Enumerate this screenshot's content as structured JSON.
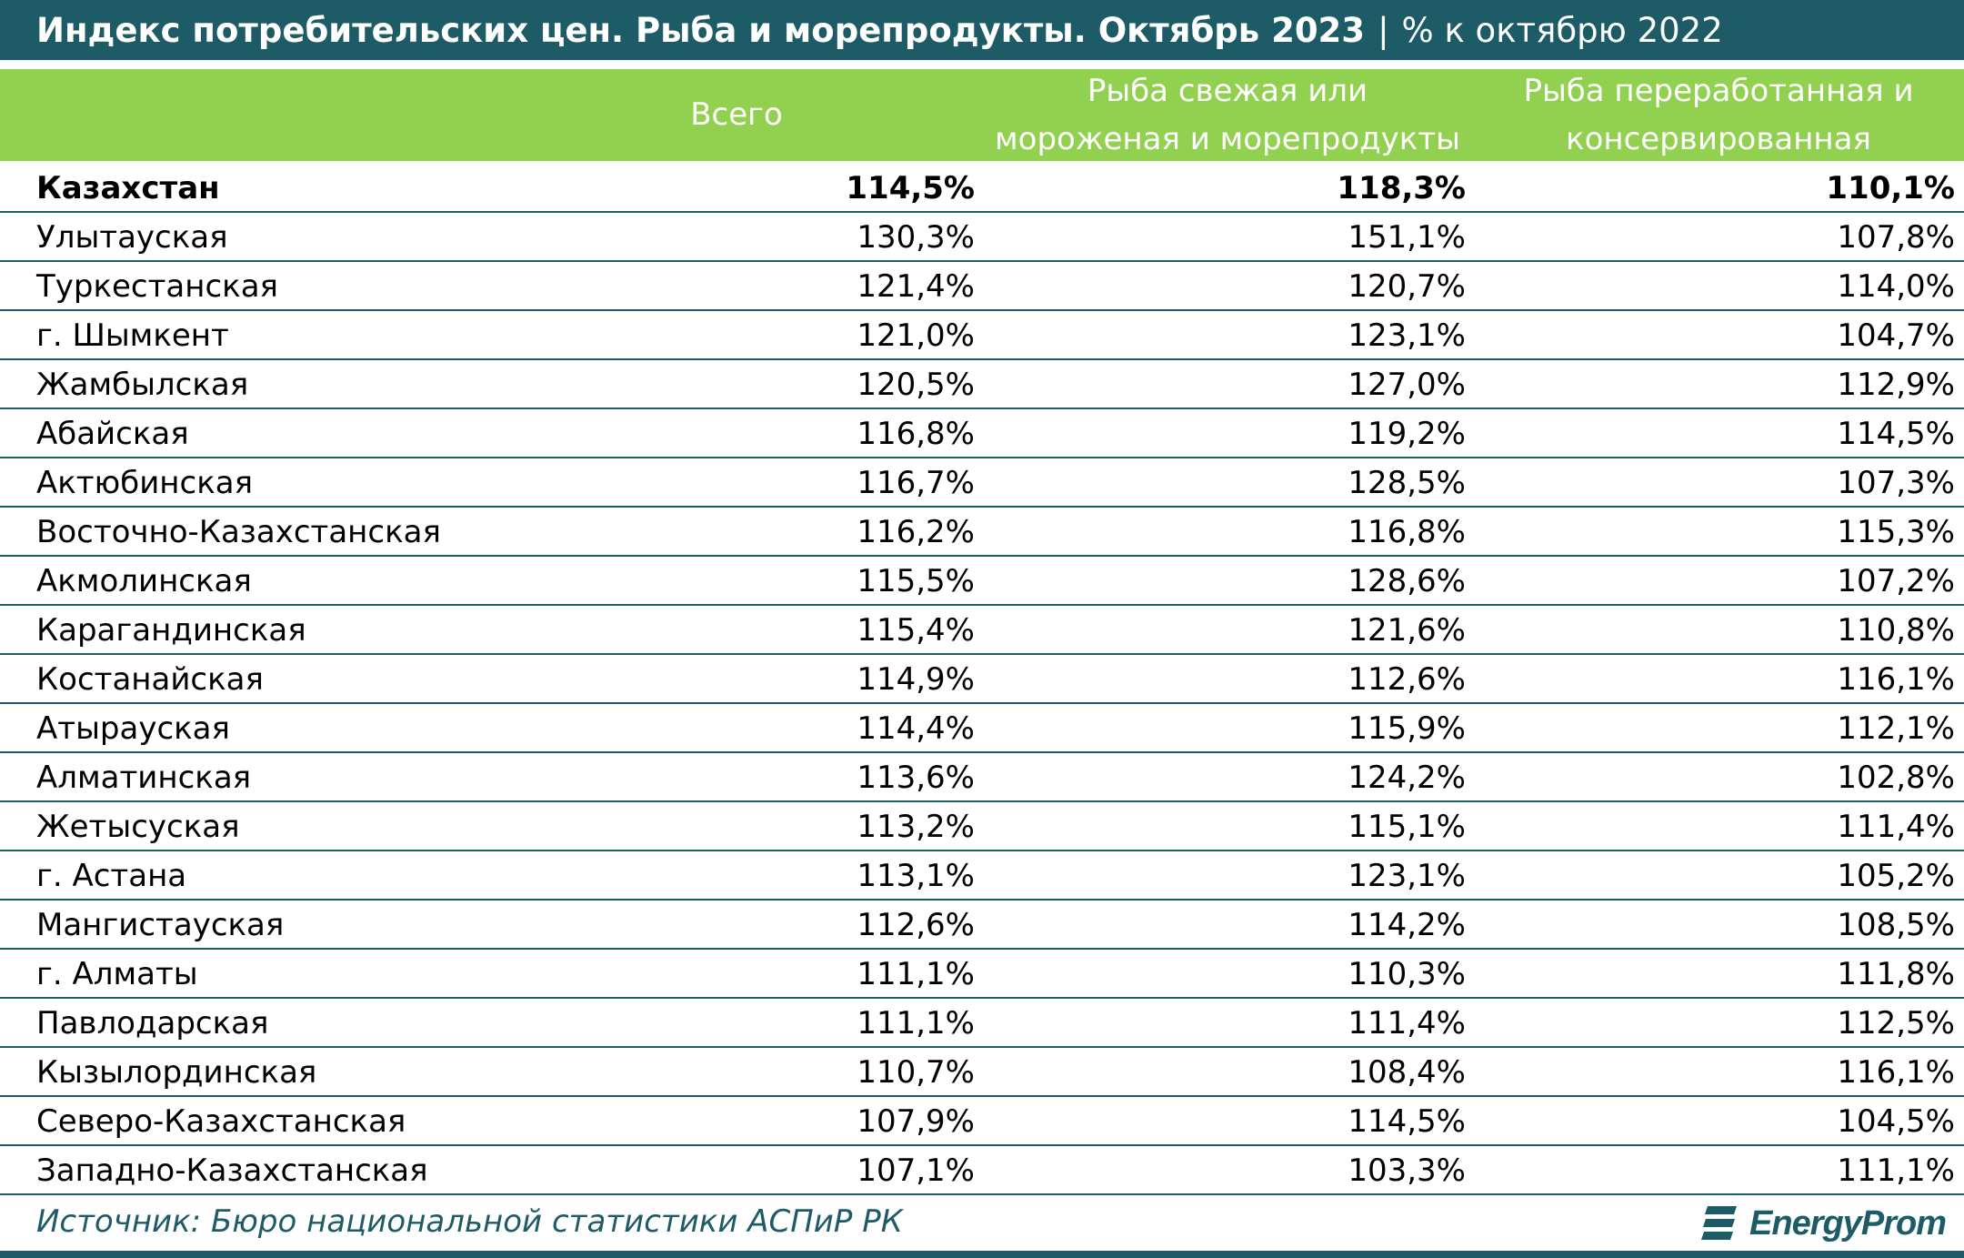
{
  "title": {
    "main": "Индекс потребительских цен. Рыба и морепродукты. Октябрь 2023",
    "separator": "|",
    "subtitle": "% к октябрю 2022"
  },
  "colors": {
    "title_bar": "#1d5c66",
    "header_bg": "#92d050",
    "header_text": "#ffffff",
    "row_border": "#1d5c66",
    "source_text": "#1d5c66"
  },
  "chart_data": {
    "type": "table",
    "title": "Индекс потребительских цен. Рыба и морепродукты. Октябрь 2023",
    "subtitle": "% к октябрю 2022",
    "columns": [
      "Всего",
      "Рыба свежая или мороженая и морепродукты",
      "Рыба переработанная и консервированная"
    ],
    "column_lines": [
      [
        "Всего"
      ],
      [
        "Рыба свежая или",
        "мороженая и морепродукты"
      ],
      [
        "Рыба переработанная и",
        "консервированная"
      ]
    ],
    "rows": [
      {
        "region": "Казахстан",
        "values": [
          "114,5%",
          "118,3%",
          "110,1%"
        ],
        "bold": true
      },
      {
        "region": "Улытауская",
        "values": [
          "130,3%",
          "151,1%",
          "107,8%"
        ]
      },
      {
        "region": "Туркестанская",
        "values": [
          "121,4%",
          "120,7%",
          "114,0%"
        ]
      },
      {
        "region": "г. Шымкент",
        "values": [
          "121,0%",
          "123,1%",
          "104,7%"
        ]
      },
      {
        "region": "Жамбылская",
        "values": [
          "120,5%",
          "127,0%",
          "112,9%"
        ]
      },
      {
        "region": "Абайская",
        "values": [
          "116,8%",
          "119,2%",
          "114,5%"
        ]
      },
      {
        "region": "Актюбинская",
        "values": [
          "116,7%",
          "128,5%",
          "107,3%"
        ]
      },
      {
        "region": "Восточно-Казахстанская",
        "values": [
          "116,2%",
          "116,8%",
          "115,3%"
        ]
      },
      {
        "region": "Акмолинская",
        "values": [
          "115,5%",
          "128,6%",
          "107,2%"
        ]
      },
      {
        "region": "Карагандинская",
        "values": [
          "115,4%",
          "121,6%",
          "110,8%"
        ]
      },
      {
        "region": "Костанайская",
        "values": [
          "114,9%",
          "112,6%",
          "116,1%"
        ]
      },
      {
        "region": "Атырауская",
        "values": [
          "114,4%",
          "115,9%",
          "112,1%"
        ]
      },
      {
        "region": "Алматинская",
        "values": [
          "113,6%",
          "124,2%",
          "102,8%"
        ]
      },
      {
        "region": "Жетысуская",
        "values": [
          "113,2%",
          "115,1%",
          "111,4%"
        ]
      },
      {
        "region": "г. Астана",
        "values": [
          "113,1%",
          "123,1%",
          "105,2%"
        ]
      },
      {
        "region": "Мангистауская",
        "values": [
          "112,6%",
          "114,2%",
          "108,5%"
        ]
      },
      {
        "region": "г. Алматы",
        "values": [
          "111,1%",
          "110,3%",
          "111,8%"
        ]
      },
      {
        "region": "Павлодарская",
        "values": [
          "111,1%",
          "111,4%",
          "112,5%"
        ]
      },
      {
        "region": "Кызылординская",
        "values": [
          "110,7%",
          "108,4%",
          "116,1%"
        ]
      },
      {
        "region": "Северо-Казахстанская",
        "values": [
          "107,9%",
          "114,5%",
          "104,5%"
        ]
      },
      {
        "region": "Западно-Казахстанская",
        "values": [
          "107,1%",
          "103,3%",
          "111,1%"
        ]
      }
    ]
  },
  "footer": {
    "source": "Источник: Бюро национальной статистики АСПиР РК",
    "logo_text": "EnergyProm",
    "logo_icon": "energyprom-logo-icon"
  }
}
